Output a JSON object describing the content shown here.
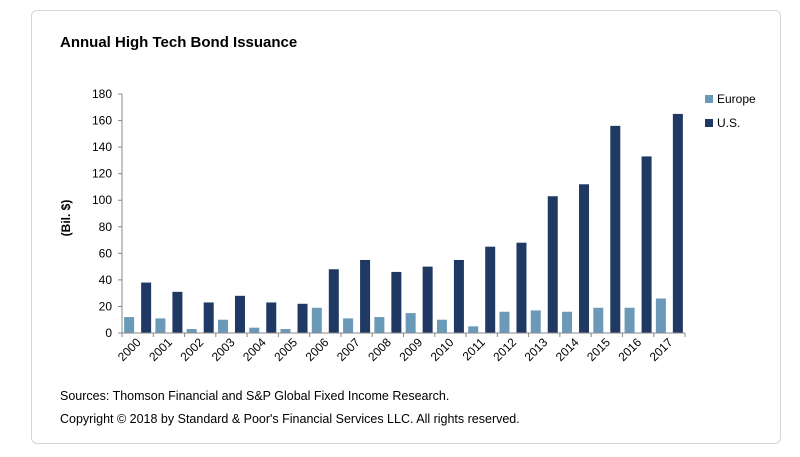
{
  "chart_data": {
    "type": "bar",
    "title": "Annual High Tech Bond Issuance",
    "ylabel": "(Bil. $)",
    "xlabel": "",
    "ylim": [
      0,
      180
    ],
    "yticks": [
      0,
      20,
      40,
      60,
      80,
      100,
      120,
      140,
      160,
      180
    ],
    "grid": false,
    "legend_position": "right",
    "categories": [
      "2000",
      "2001",
      "2002",
      "2003",
      "2004",
      "2005",
      "2006",
      "2007",
      "2008",
      "2009",
      "2010",
      "2011",
      "2012",
      "2013",
      "2014",
      "2015",
      "2016",
      "2017"
    ],
    "series": [
      {
        "name": "Europe",
        "color": "#6a9ab8",
        "values": [
          12,
          11,
          3,
          10,
          4,
          3,
          19,
          11,
          12,
          15,
          10,
          5,
          16,
          17,
          16,
          19,
          19,
          26
        ]
      },
      {
        "name": "U.S.",
        "color": "#1f3864",
        "values": [
          38,
          31,
          23,
          28,
          23,
          22,
          48,
          55,
          46,
          50,
          55,
          65,
          68,
          103,
          112,
          156,
          133,
          165
        ]
      }
    ]
  },
  "footer": {
    "sources": "Sources: Thomson Financial and S&P Global Fixed Income Research.",
    "copyright": "Copyright © 2018 by Standard & Poor's Financial Services LLC. All rights reserved."
  }
}
